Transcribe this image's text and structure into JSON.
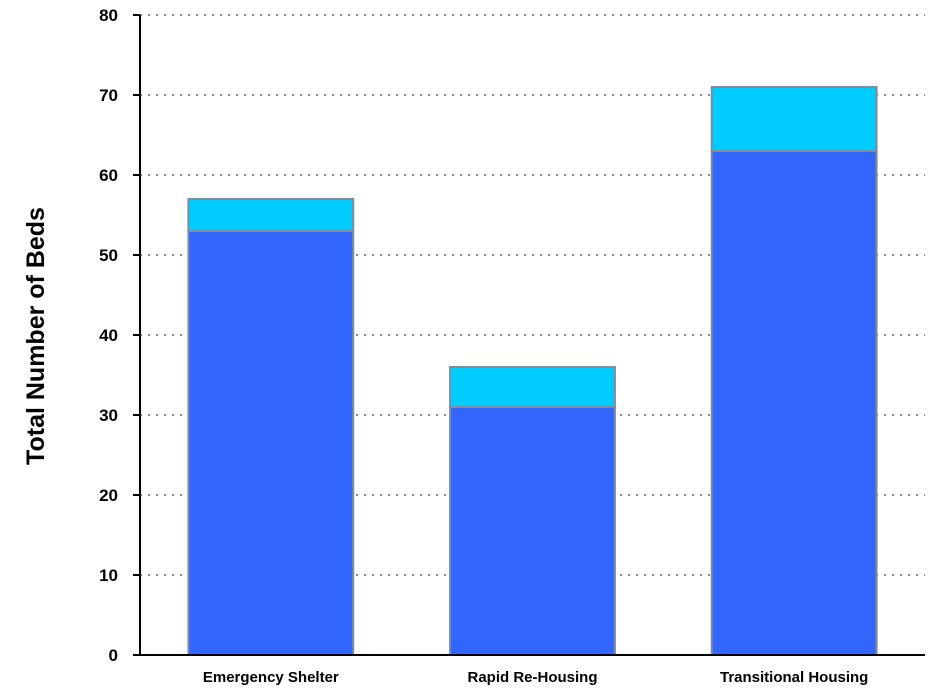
{
  "chart_data": {
    "type": "bar",
    "stacked": true,
    "categories": [
      "Emergency Shelter",
      "Rapid Re-Housing",
      "Transitional Housing"
    ],
    "series": [
      {
        "values": [
          53,
          31,
          63
        ],
        "color": "#3366FF"
      },
      {
        "values": [
          4,
          5,
          8
        ],
        "color": "#00CCFF"
      }
    ],
    "title": "",
    "xlabel": "",
    "ylabel": "Total Number of Beds",
    "ylim": [
      0,
      80
    ],
    "yticks": [
      0,
      10,
      20,
      30,
      40,
      50,
      60,
      70,
      80
    ],
    "grid": "horizontal dotted",
    "legend": "none",
    "bar_outline_color": "#7F8C99",
    "grid_color": "#8C8C8C",
    "axis_color": "#000000"
  }
}
